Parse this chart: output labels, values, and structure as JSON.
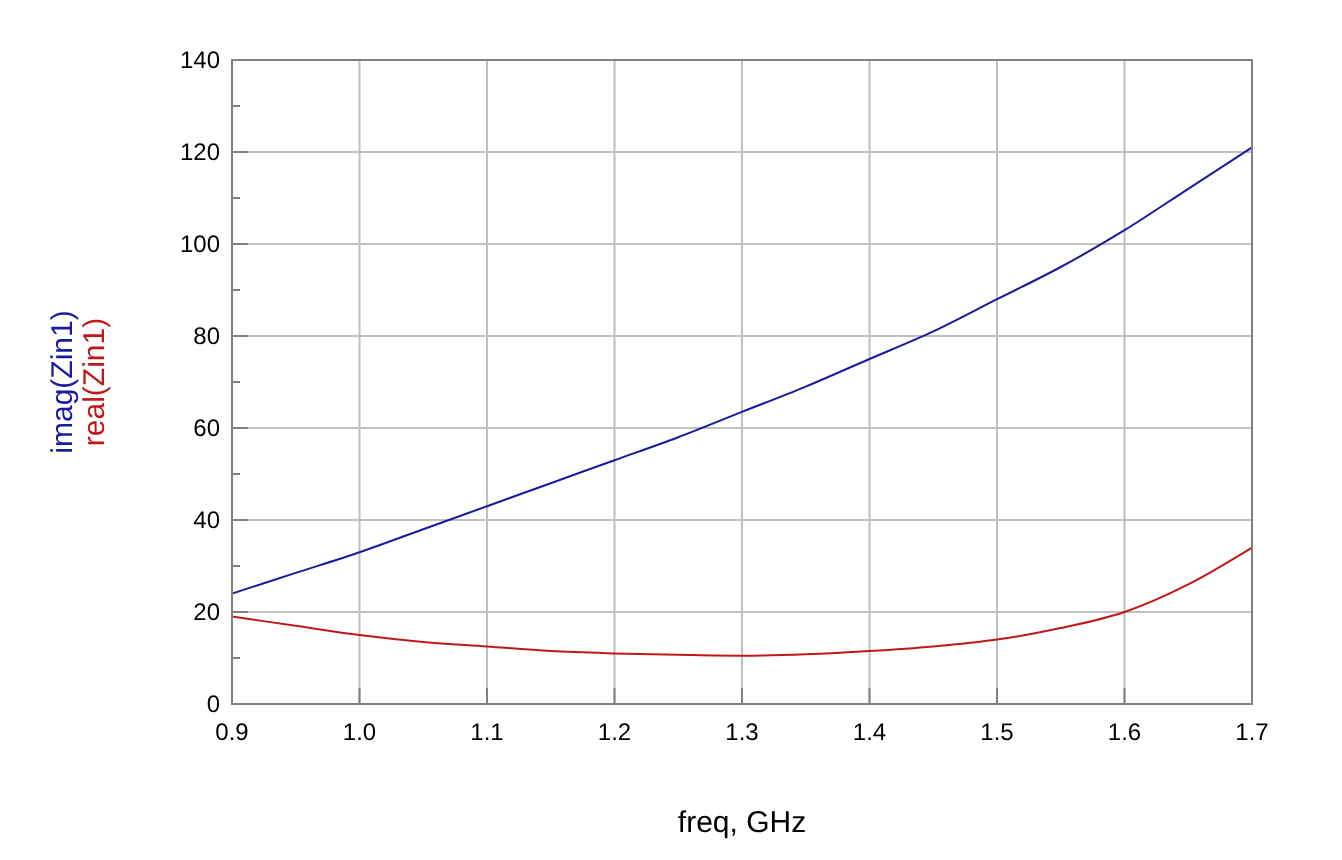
{
  "chart_data": {
    "type": "line",
    "xlabel": "freq, GHz",
    "x": [
      0.9,
      0.95,
      1.0,
      1.05,
      1.1,
      1.15,
      1.2,
      1.25,
      1.3,
      1.35,
      1.4,
      1.45,
      1.5,
      1.55,
      1.6,
      1.65,
      1.7
    ],
    "series": [
      {
        "name": "imag(Zin1)",
        "color": "#1a1a9c",
        "values": [
          24,
          28.5,
          33,
          38,
          43,
          48,
          53,
          58,
          63.5,
          69,
          75,
          81,
          88,
          95,
          103,
          112,
          121
        ]
      },
      {
        "name": "real(Zin1)",
        "color": "#c01818",
        "values": [
          19,
          17,
          15,
          13.5,
          12.5,
          11.5,
          11,
          10.7,
          10.5,
          10.8,
          11.5,
          12.5,
          14,
          16.5,
          20,
          26,
          34
        ]
      }
    ],
    "xlim": [
      0.9,
      1.7
    ],
    "xticks": [
      {
        "value": 0.9,
        "label": "0.9"
      },
      {
        "value": 1.0,
        "label": "1.0"
      },
      {
        "value": 1.1,
        "label": "1.1"
      },
      {
        "value": 1.2,
        "label": "1.2"
      },
      {
        "value": 1.3,
        "label": "1.3"
      },
      {
        "value": 1.4,
        "label": "1.4"
      },
      {
        "value": 1.5,
        "label": "1.5"
      },
      {
        "value": 1.6,
        "label": "1.6"
      },
      {
        "value": 1.7,
        "label": "1.7"
      }
    ],
    "ylim": [
      0,
      140
    ],
    "yticks": [
      0,
      {
        "value": 10,
        "label": null
      },
      20,
      {
        "value": 30,
        "label": null
      },
      40,
      {
        "value": 50,
        "label": null
      },
      60,
      {
        "value": 70,
        "label": null
      },
      80,
      {
        "value": 90,
        "label": null
      },
      100,
      {
        "value": 110,
        "label": null
      },
      120,
      {
        "value": 130,
        "label": null
      },
      140
    ],
    "grid": true,
    "legend": "left",
    "marker": "none",
    "line_style": "solid"
  }
}
